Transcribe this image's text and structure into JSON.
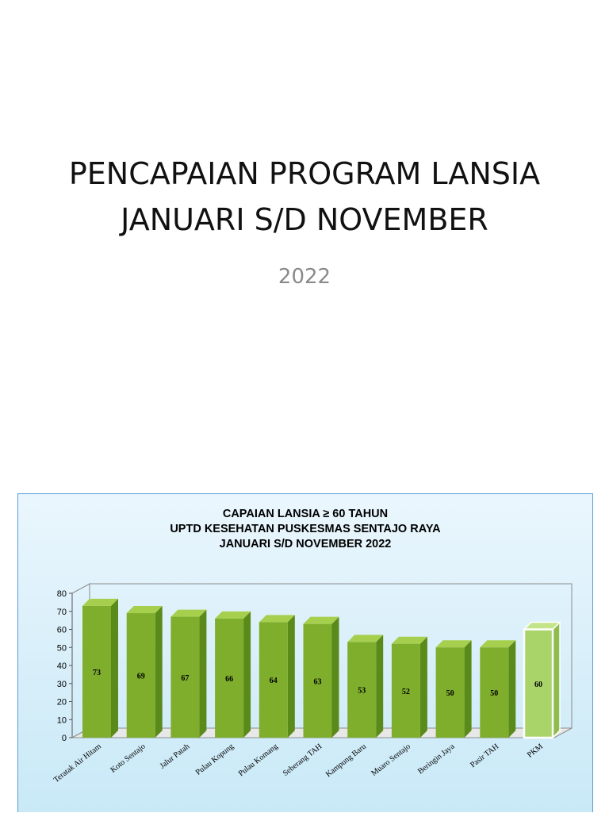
{
  "slide": {
    "title_line1": "PENCAPAIAN PROGRAM LANSIA",
    "title_line2": "JANUARI S/D NOVEMBER",
    "subtitle": "2022"
  },
  "chart_data": {
    "type": "bar",
    "title_lines": [
      "CAPAIAN LANSIA ≥ 60 TAHUN",
      "UPTD KESEHATAN PUSKESMAS SENTAJO RAYA",
      "JANUARI S/D NOVEMBER 2022"
    ],
    "categories": [
      "Teratak Air Hitam",
      "Koto Sentajo",
      "Jalur Patah",
      "Pulau Kopung",
      "Pulau Komang",
      "Seberang TAH",
      "Kampung Baru",
      "Muaro Sentajo",
      "Beringin Jaya",
      "Pasir TAH",
      "PKM"
    ],
    "values": [
      73,
      69,
      67,
      66,
      64,
      63,
      53,
      52,
      50,
      50,
      60
    ],
    "data_labels": [
      "73",
      "69",
      "67",
      "66",
      "64",
      "63",
      "53",
      "52",
      "50",
      "50",
      "60"
    ],
    "yticks": [
      "0",
      "10",
      "20",
      "30",
      "40",
      "50",
      "60",
      "70",
      "80"
    ],
    "ylim": [
      0,
      80
    ],
    "grid": false,
    "highlight_category": "PKM",
    "colors": {
      "bar": "#7fae2d",
      "bar_top": "#a6cf4e",
      "bar_side": "#5a8a1a",
      "highlight": "#a9d46a",
      "highlight_border": "#ffffff"
    }
  }
}
